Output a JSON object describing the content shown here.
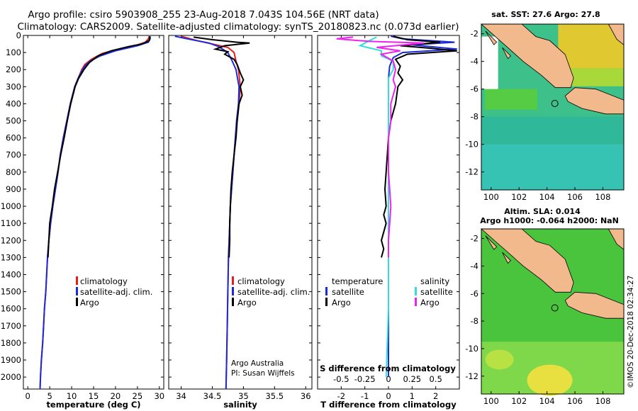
{
  "header": {
    "line1": "Argo profile: csiro 5903908_255 23-Aug-2018 7.043S 104.56E (NRT data)",
    "line2": "Climatology: CARS2009. Satellite-adjusted climatology: synTS_20180823.nc (0.073d earlier)"
  },
  "credits": {
    "line1": "Argo Australia",
    "line2": "PI: Susan Wijffels",
    "side": "©IMOS 20-Dec-2018 02:34:27"
  },
  "colors": {
    "climatology": "#e0201b",
    "satellite": "#1b2bd8",
    "argo": "#000000",
    "sat_salinity": "#33dddd",
    "argo_salinity": "#ee22ee",
    "land": "#f2b98c"
  },
  "legend": {
    "climatology": "climatology",
    "satellite": "satellite-adj. clim.",
    "argo": "Argo",
    "diff_temp_header": "temperature",
    "diff_sal_header": "salinity",
    "diff_satellite": "satellite",
    "diff_argo": "Argo",
    "s_diff_label": "S difference from climatology"
  },
  "maps": {
    "sst_title": "sat. SST: 27.6 Argo: 27.8",
    "sla_title1": "Altim. SLA: 0.014",
    "sla_title2": "Argo h1000: -0.064 h2000: NaN",
    "lat_ticks": [
      "-2",
      "-4",
      "-6",
      "-8",
      "-10",
      "-12"
    ],
    "lon_ticks": [
      "100",
      "102",
      "104",
      "106",
      "108"
    ],
    "float_lat": -7.043,
    "float_lon": 104.56
  },
  "chart_data": [
    {
      "type": "line",
      "name": "temperature",
      "xlabel": "temperature (deg C)",
      "ylabel": "",
      "xlim": [
        -1,
        31
      ],
      "ylim": [
        2070,
        0
      ],
      "xticks": [
        0,
        5,
        10,
        15,
        20,
        25,
        30
      ],
      "yticks": [
        0,
        100,
        200,
        300,
        400,
        500,
        600,
        700,
        800,
        900,
        1000,
        1100,
        1200,
        1300,
        1400,
        1500,
        1600,
        1700,
        1800,
        1900,
        2000
      ],
      "series": [
        {
          "name": "climatology",
          "color": "#e0201b",
          "points": [
            [
              27.7,
              5
            ],
            [
              27.5,
              20
            ],
            [
              26.8,
              40
            ],
            [
              25,
              55
            ],
            [
              21.5,
              75
            ],
            [
              17,
              105
            ],
            [
              14.5,
              140
            ],
            [
              13,
              170
            ],
            [
              12.3,
              200
            ],
            [
              11.5,
              250
            ],
            [
              10.7,
              300
            ],
            [
              9.7,
              400
            ],
            [
              8.9,
              500
            ],
            [
              8.1,
              600
            ],
            [
              7.4,
              700
            ],
            [
              6.9,
              800
            ],
            [
              6.3,
              900
            ],
            [
              5.7,
              1000
            ],
            [
              5.2,
              1100
            ],
            [
              4.8,
              1200
            ],
            [
              4.5,
              1300
            ],
            [
              4.3,
              1400
            ],
            [
              4.1,
              1500
            ],
            [
              3.8,
              1600
            ],
            [
              3.6,
              1700
            ],
            [
              3.4,
              1800
            ],
            [
              3.1,
              1900
            ],
            [
              2.9,
              2000
            ],
            [
              2.8,
              2070
            ]
          ]
        },
        {
          "name": "satellite-adj. clim.",
          "color": "#1b2bd8",
          "points": [
            [
              27.9,
              5
            ],
            [
              27.9,
              20
            ],
            [
              27.5,
              40
            ],
            [
              25,
              60
            ],
            [
              20,
              90
            ],
            [
              16.5,
              120
            ],
            [
              14.2,
              150
            ],
            [
              13,
              180
            ],
            [
              12.3,
              210
            ],
            [
              11.5,
              250
            ],
            [
              10.7,
              300
            ],
            [
              9.7,
              400
            ],
            [
              8.9,
              500
            ],
            [
              8.1,
              600
            ],
            [
              7.4,
              700
            ],
            [
              6.9,
              800
            ],
            [
              6.3,
              900
            ],
            [
              5.7,
              1000
            ],
            [
              5.2,
              1100
            ],
            [
              4.8,
              1200
            ],
            [
              4.5,
              1300
            ],
            [
              4.3,
              1400
            ],
            [
              4.1,
              1500
            ],
            [
              3.8,
              1600
            ],
            [
              3.6,
              1700
            ],
            [
              3.4,
              1800
            ],
            [
              3.1,
              1900
            ],
            [
              2.9,
              2000
            ],
            [
              2.8,
              2070
            ]
          ]
        },
        {
          "name": "Argo",
          "color": "#000000",
          "points": [
            [
              27.8,
              5
            ],
            [
              27.7,
              30
            ],
            [
              26,
              50
            ],
            [
              23,
              65
            ],
            [
              19,
              90
            ],
            [
              16,
              120
            ],
            [
              14,
              160
            ],
            [
              12.8,
              200
            ],
            [
              11.6,
              250
            ],
            [
              10.8,
              300
            ],
            [
              9.8,
              400
            ],
            [
              9.0,
              500
            ],
            [
              8.3,
              600
            ],
            [
              7.5,
              700
            ],
            [
              6.8,
              800
            ],
            [
              6.1,
              900
            ],
            [
              5.6,
              1000
            ],
            [
              5.0,
              1100
            ],
            [
              4.8,
              1200
            ],
            [
              4.6,
              1300
            ]
          ]
        }
      ]
    },
    {
      "type": "line",
      "name": "salinity",
      "xlabel": "salinity",
      "ylabel": "",
      "xlim": [
        33.8,
        36.1
      ],
      "ylim": [
        2070,
        0
      ],
      "xticks": [
        34,
        34.5,
        35,
        35.5,
        36
      ],
      "xticklabels": [
        "34",
        "34.5",
        "35",
        "35.5",
        "36"
      ],
      "series": [
        {
          "name": "climatology",
          "color": "#e0201b",
          "points": [
            [
              34.0,
              5
            ],
            [
              34.25,
              30
            ],
            [
              34.5,
              50
            ],
            [
              34.75,
              70
            ],
            [
              34.85,
              100
            ],
            [
              34.88,
              150
            ],
            [
              34.92,
              200
            ],
            [
              34.95,
              300
            ],
            [
              34.93,
              400
            ],
            [
              34.9,
              500
            ],
            [
              34.87,
              600
            ],
            [
              34.85,
              700
            ],
            [
              34.83,
              800
            ],
            [
              34.81,
              900
            ],
            [
              34.79,
              1000
            ],
            [
              34.78,
              1100
            ],
            [
              34.77,
              1200
            ],
            [
              34.76,
              1300
            ],
            [
              34.75,
              1500
            ],
            [
              34.74,
              1700
            ],
            [
              34.73,
              1900
            ],
            [
              34.72,
              2070
            ]
          ]
        },
        {
          "name": "satellite-adj. clim.",
          "color": "#1b2bd8",
          "points": [
            [
              33.9,
              5
            ],
            [
              34.1,
              20
            ],
            [
              34.45,
              45
            ],
            [
              34.6,
              65
            ],
            [
              34.75,
              100
            ],
            [
              34.82,
              150
            ],
            [
              34.88,
              200
            ],
            [
              34.93,
              300
            ],
            [
              34.92,
              400
            ],
            [
              34.89,
              500
            ],
            [
              34.87,
              600
            ],
            [
              34.85,
              700
            ],
            [
              34.83,
              800
            ],
            [
              34.81,
              900
            ],
            [
              34.79,
              1000
            ],
            [
              34.78,
              1100
            ],
            [
              34.77,
              1200
            ],
            [
              34.76,
              1300
            ],
            [
              34.75,
              1500
            ],
            [
              34.74,
              1700
            ],
            [
              34.73,
              1900
            ],
            [
              34.72,
              2070
            ]
          ]
        },
        {
          "name": "Argo",
          "color": "#000000",
          "points": [
            [
              34.2,
              10
            ],
            [
              34.5,
              25
            ],
            [
              34.9,
              40
            ],
            [
              35.1,
              45
            ],
            [
              34.7,
              60
            ],
            [
              34.55,
              80
            ],
            [
              34.75,
              95
            ],
            [
              34.7,
              110
            ],
            [
              34.85,
              140
            ],
            [
              34.9,
              170
            ],
            [
              34.95,
              220
            ],
            [
              35.0,
              260
            ],
            [
              34.95,
              300
            ],
            [
              34.98,
              350
            ],
            [
              34.93,
              400
            ],
            [
              34.9,
              500
            ],
            [
              34.88,
              600
            ],
            [
              34.85,
              700
            ],
            [
              34.82,
              800
            ],
            [
              34.8,
              900
            ],
            [
              34.79,
              1000
            ],
            [
              34.78,
              1100
            ],
            [
              34.78,
              1200
            ],
            [
              34.77,
              1300
            ]
          ]
        }
      ]
    },
    {
      "type": "line",
      "name": "difference",
      "xlabel": "T difference from climatology",
      "x2label": "S difference from climatology",
      "ylabel": "",
      "xlim": [
        -3,
        3
      ],
      "ylim": [
        2070,
        0
      ],
      "xticks": [
        -2,
        -1,
        0,
        1,
        2
      ],
      "xticklabels": [
        "-2",
        "-1",
        "0",
        "1",
        "2"
      ],
      "x2ticks": [
        -0.5,
        -0.25,
        0,
        0.25,
        0.5
      ],
      "x2ticklabels": [
        "-0.5",
        "-0.25",
        "0",
        "0.25",
        "0.5"
      ],
      "series": [
        {
          "name": "satellite (temperature)",
          "color": "#1b2bd8",
          "points": [
            [
              0.1,
              5
            ],
            [
              0.6,
              20
            ],
            [
              2.8,
              40
            ],
            [
              1,
              55
            ],
            [
              2.9,
              80
            ],
            [
              0.6,
              100
            ],
            [
              0.2,
              130
            ],
            [
              0.05,
              180
            ],
            [
              0,
              250
            ],
            [
              0,
              400
            ],
            [
              0,
              600
            ],
            [
              0,
              800
            ],
            [
              0,
              1000
            ],
            [
              0,
              1300
            ],
            [
              0,
              1600
            ],
            [
              0,
              2000
            ]
          ]
        },
        {
          "name": "Argo (temperature)",
          "color": "#000000",
          "points": [
            [
              0.2,
              5
            ],
            [
              0.8,
              25
            ],
            [
              2.2,
              40
            ],
            [
              0.5,
              60
            ],
            [
              1.8,
              75
            ],
            [
              2.9,
              90
            ],
            [
              0.8,
              110
            ],
            [
              0.3,
              140
            ],
            [
              0.5,
              180
            ],
            [
              0.4,
              220
            ],
            [
              0.6,
              260
            ],
            [
              0.4,
              300
            ],
            [
              0.3,
              400
            ],
            [
              0.1,
              500
            ],
            [
              0,
              600
            ],
            [
              -0.1,
              800
            ],
            [
              -0.15,
              900
            ],
            [
              -0.1,
              1000
            ],
            [
              -0.2,
              1050
            ],
            [
              -0.1,
              1100
            ],
            [
              -0.3,
              1200
            ],
            [
              -0.2,
              1250
            ],
            [
              -0.3,
              1300
            ]
          ]
        },
        {
          "name": "satellite (salinity)",
          "color": "#33dddd",
          "points": [
            [
              -0.5,
              10
            ],
            [
              -0.8,
              30
            ],
            [
              -1.2,
              60
            ],
            [
              -0.3,
              90
            ],
            [
              -0.3,
              120
            ],
            [
              0.2,
              150
            ],
            [
              0.2,
              200
            ],
            [
              0,
              250
            ],
            [
              0,
              400
            ],
            [
              0,
              600
            ],
            [
              0,
              800
            ],
            [
              0,
              1000
            ],
            [
              0,
              1300
            ],
            [
              0,
              1600
            ],
            [
              -0.1,
              2000
            ]
          ]
        },
        {
          "name": "Argo (salinity)",
          "color": "#ee22ee",
          "points": [
            [
              -1.5,
              10
            ],
            [
              -2.2,
              20
            ],
            [
              -0.8,
              35
            ],
            [
              1.5,
              45
            ],
            [
              -0.5,
              70
            ],
            [
              0.5,
              90
            ],
            [
              -0.3,
              110
            ],
            [
              0.2,
              150
            ],
            [
              0.3,
              200
            ],
            [
              0.2,
              260
            ],
            [
              0.3,
              300
            ],
            [
              0.1,
              400
            ],
            [
              0.1,
              500
            ],
            [
              0,
              600
            ],
            [
              0,
              800
            ],
            [
              0.05,
              900
            ],
            [
              0.1,
              1000
            ],
            [
              0.05,
              1100
            ],
            [
              0,
              1200
            ],
            [
              0,
              1300
            ]
          ]
        }
      ]
    }
  ]
}
